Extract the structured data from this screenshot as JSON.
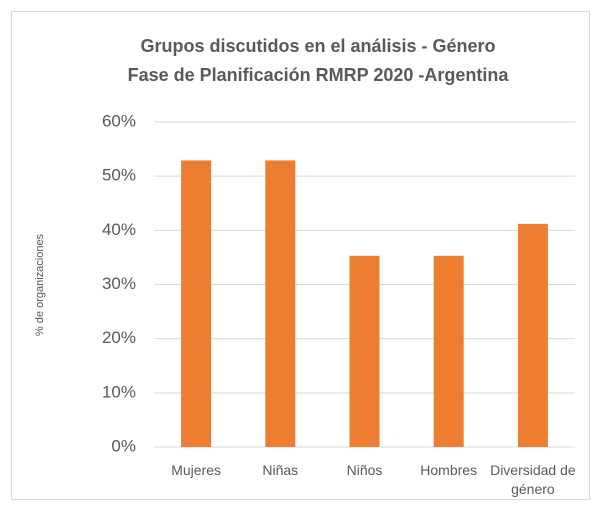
{
  "chart_data": {
    "type": "bar",
    "title": [
      "Grupos discutidos en el análisis - Género",
      "Fase de Planificación RMRP 2020 -Argentina"
    ],
    "y_label": "% de organizaciones",
    "categories": [
      "Mujeres",
      "Niñas",
      "Niños",
      "Hombres",
      "Diversidad de género"
    ],
    "values": [
      52.9,
      52.9,
      35.3,
      35.3,
      41.2
    ],
    "color": "#ed7d31",
    "ylim": [
      0,
      60
    ],
    "yticks": [
      {
        "value": 0,
        "label": "0%"
      },
      {
        "value": 10,
        "label": "10%"
      },
      {
        "value": 20,
        "label": "20%"
      },
      {
        "value": 30,
        "label": "30%"
      },
      {
        "value": 40,
        "label": "40%"
      },
      {
        "value": 50,
        "label": "50%"
      },
      {
        "value": 60,
        "label": "60%"
      }
    ],
    "grid": true
  }
}
